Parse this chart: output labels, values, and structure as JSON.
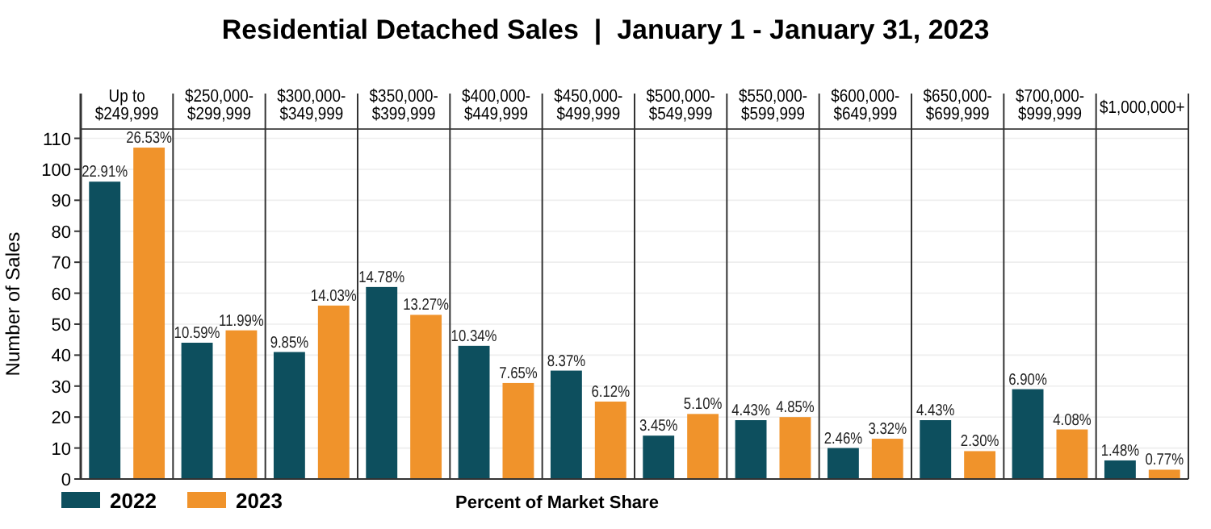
{
  "chart_data": {
    "type": "bar",
    "title": "Residential Detached Sales  |  January 1 - January 31, 2023",
    "ylabel": "Number of Sales",
    "categories": [
      "Up to\n$249,999",
      "$250,000-\n$299,999",
      "$300,000-\n$349,999",
      "$350,000-\n$399,999",
      "$400,000-\n$449,999",
      "$450,000-\n$499,999",
      "$500,000-\n$549,999",
      "$550,000-\n$599,999",
      "$600,000-\n$649,999",
      "$650,000-\n$699,999",
      "$700,000-\n$999,999",
      "$1,000,000+"
    ],
    "series": [
      {
        "name": "2022",
        "color": "#0d4f5e",
        "values": [
          96,
          44,
          41,
          62,
          43,
          35,
          14,
          19,
          10,
          19,
          29,
          6
        ]
      },
      {
        "name": "2023",
        "color": "#f0932b",
        "values": [
          107,
          48,
          56,
          53,
          31,
          25,
          21,
          20,
          13,
          9,
          16,
          3
        ]
      }
    ],
    "ylim": [
      0,
      113
    ],
    "yticks": [
      0,
      10,
      20,
      30,
      40,
      50,
      60,
      70,
      80,
      90,
      100,
      110
    ],
    "grid": "y",
    "legend": "bottom left",
    "annotations": [
      "Percent of Market Share",
      {
        "text": "22.91%",
        "x": "Up to\n$249,999",
        "y": 96
      },
      {
        "text": "10.59%",
        "x": "$250,000-\n$299,999",
        "y": 44
      },
      {
        "text": "9.85%",
        "x": "$300,000-\n$349,999",
        "y": 41
      },
      {
        "text": "14.78%",
        "x": "$350,000-\n$399,999",
        "y": 62
      },
      {
        "text": "10.34%",
        "x": "$400,000-\n$449,999",
        "y": 43
      },
      {
        "text": "8.37%",
        "x": "$450,000-\n$499,999",
        "y": 35
      },
      {
        "text": "3.45%",
        "x": "$500,000-\n$549,999",
        "y": 14
      },
      {
        "text": "4.43%",
        "x": "$550,000-\n$599,999",
        "y": 19
      },
      {
        "text": "2.46%",
        "x": "$600,000-\n$649,999",
        "y": 10
      },
      {
        "text": "4.43%",
        "x": "$650,000-\n$699,999",
        "y": 19
      },
      {
        "text": "6.90%",
        "x": "$700,000-\n$999,999",
        "y": 29
      },
      {
        "text": "1.48%",
        "x": "$1,000,000+",
        "y": 6
      },
      {
        "text": "26.53%",
        "x": "Up to\n$249,999",
        "y": 107
      },
      {
        "text": "11.99%",
        "x": "$250,000-\n$299,999",
        "y": 48
      },
      {
        "text": "14.03%",
        "x": "$300,000-\n$349,999",
        "y": 56
      },
      {
        "text": "13.27%",
        "x": "$350,000-\n$399,999",
        "y": 53
      },
      {
        "text": "7.65%",
        "x": "$400,000-\n$449,999",
        "y": 31
      },
      {
        "text": "6.12%",
        "x": "$450,000-\n$499,999",
        "y": 25
      },
      {
        "text": "5.10%",
        "x": "$500,000-\n$549,999",
        "y": 21
      },
      {
        "text": "4.85%",
        "x": "$550,000-\n$599,999",
        "y": 20
      },
      {
        "text": "3.32%",
        "x": "$600,000-\n$649,999",
        "y": 13
      },
      {
        "text": "2.30%",
        "x": "$650,000-\n$699,999",
        "y": 9
      },
      {
        "text": "4.08%",
        "x": "$700,000-\n$999,999",
        "y": 16
      },
      {
        "text": "0.77%",
        "x": "$1,000,000+",
        "y": 3
      }
    ]
  }
}
